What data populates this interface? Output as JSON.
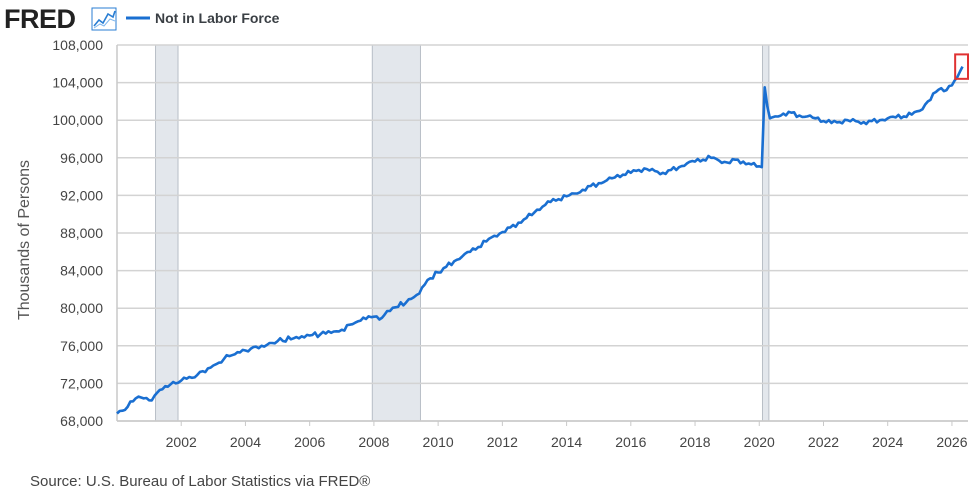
{
  "header": {
    "logo_text": "FRED",
    "logo_icon": "line-chart-icon"
  },
  "source": "Source: U.S. Bureau of Labor Statistics via FRED®",
  "colors": {
    "series": "#1a6fd1",
    "recession": "#e3e7ec",
    "grid": "#d3d3d3",
    "highlight_box": "#e03232"
  },
  "chart_data": {
    "type": "line",
    "title": "",
    "xlabel": "",
    "ylabel": "Thousands of Persons",
    "legend": "top-left",
    "grid": true,
    "xlim": [
      2000.0,
      2026.5
    ],
    "ylim": [
      68000,
      108000
    ],
    "yticks": [
      68000,
      72000,
      76000,
      80000,
      84000,
      88000,
      92000,
      96000,
      100000,
      104000,
      108000
    ],
    "ytick_labels": [
      "68,000",
      "72,000",
      "76,000",
      "80,000",
      "84,000",
      "88,000",
      "92,000",
      "96,000",
      "100,000",
      "104,000",
      "108,000"
    ],
    "xticks": [
      2002,
      2004,
      2006,
      2008,
      2010,
      2012,
      2014,
      2016,
      2018,
      2020,
      2022,
      2024,
      2026
    ],
    "xtick_labels": [
      "2002",
      "2004",
      "2006",
      "2008",
      "2010",
      "2012",
      "2014",
      "2016",
      "2018",
      "2020",
      "2022",
      "2024",
      "2026"
    ],
    "recessions": [
      {
        "start": 2001.2,
        "end": 2001.9
      },
      {
        "start": 2007.95,
        "end": 2009.45
      },
      {
        "start": 2020.1,
        "end": 2020.3
      }
    ],
    "highlight": {
      "x": [
        2026.1,
        2026.5
      ],
      "y": [
        104400,
        107000
      ]
    },
    "series": [
      {
        "name": "Not in Labor Force",
        "x": [
          2000.0,
          2000.17,
          2000.33,
          2000.5,
          2000.67,
          2000.83,
          2001.0,
          2001.17,
          2001.33,
          2001.5,
          2001.67,
          2001.83,
          2002.0,
          2002.17,
          2002.33,
          2002.5,
          2002.67,
          2002.83,
          2003.0,
          2003.17,
          2003.33,
          2003.5,
          2003.67,
          2003.83,
          2004.0,
          2004.17,
          2004.33,
          2004.5,
          2004.67,
          2004.83,
          2005.0,
          2005.5,
          2006.0,
          2006.5,
          2007.0,
          2007.33,
          2007.5,
          2007.67,
          2008.0,
          2008.17,
          2008.33,
          2008.5,
          2008.67,
          2009.0,
          2009.33,
          2009.5,
          2009.67,
          2010.0,
          2010.25,
          2010.5,
          2010.75,
          2011.0,
          2011.25,
          2011.5,
          2011.75,
          2012.0,
          2012.25,
          2012.5,
          2012.75,
          2013.0,
          2013.25,
          2013.5,
          2013.75,
          2014.0,
          2014.25,
          2014.5,
          2014.75,
          2015.0,
          2015.25,
          2015.5,
          2015.75,
          2016.0,
          2016.25,
          2016.5,
          2016.75,
          2017.0,
          2017.25,
          2017.5,
          2017.75,
          2018.0,
          2018.25,
          2018.5,
          2018.75,
          2019.0,
          2019.25,
          2019.5,
          2019.75,
          2020.0,
          2020.08,
          2020.17,
          2020.25,
          2020.33,
          2020.5,
          2020.75,
          2021.0,
          2021.25,
          2021.5,
          2021.75,
          2022.0,
          2022.25,
          2022.5,
          2022.75,
          2023.0,
          2023.25,
          2023.5,
          2023.75,
          2024.0,
          2024.25,
          2024.5,
          2024.75,
          2025.0,
          2025.25,
          2025.5,
          2025.67,
          2025.83,
          2026.0,
          2026.17,
          2026.33
        ],
        "values": [
          68800,
          69100,
          69500,
          70100,
          70600,
          70400,
          70200,
          70700,
          71300,
          71700,
          71900,
          72000,
          72300,
          72500,
          72600,
          72900,
          73300,
          73600,
          73900,
          74200,
          74600,
          74900,
          75100,
          75300,
          75500,
          75700,
          75900,
          76000,
          76100,
          76300,
          76500,
          76800,
          77100,
          77300,
          77700,
          78300,
          78600,
          79000,
          79100,
          78800,
          79300,
          79700,
          80100,
          80600,
          81400,
          82200,
          83000,
          83800,
          84400,
          85000,
          85500,
          86000,
          86500,
          87100,
          87700,
          88100,
          88600,
          89100,
          89600,
          90200,
          90800,
          91300,
          91600,
          91900,
          92200,
          92600,
          93000,
          93300,
          93600,
          93900,
          94200,
          94400,
          94700,
          94800,
          94600,
          94400,
          94700,
          95000,
          95400,
          95600,
          95800,
          96000,
          95700,
          95500,
          95800,
          95600,
          95300,
          95100,
          95000,
          103500,
          101500,
          100200,
          100400,
          100700,
          100800,
          100500,
          100400,
          100200,
          99900,
          99700,
          99800,
          100000,
          99900,
          99800,
          99900,
          100000,
          100200,
          100300,
          100400,
          100600,
          101000,
          102000,
          103000,
          103400,
          103200,
          103700,
          104600,
          105700
        ]
      }
    ]
  }
}
